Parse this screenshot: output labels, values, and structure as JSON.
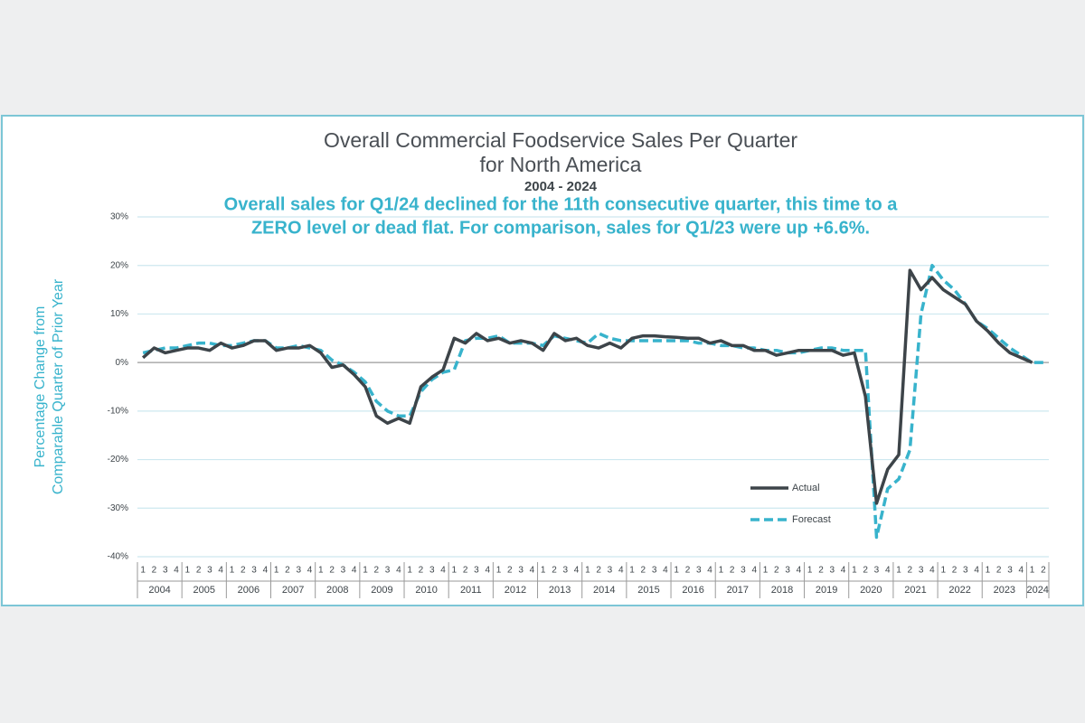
{
  "chart_data": {
    "type": "line",
    "title": [
      "Overall Commercial Foodservice Sales Per Quarter",
      "for North America"
    ],
    "subtitle": "2004 - 2024",
    "annotation": [
      "Overall sales for Q1/24 declined for the 11th consecutive quarter, this time to a",
      "ZERO level or dead flat. For comparison,  sales for Q1/23 were up +6.6%."
    ],
    "y_label": [
      "Percentage Change from",
      "Comparable Quarter of Prior Year"
    ],
    "categories": [
      "1",
      "2",
      "3",
      "4",
      "1",
      "2",
      "3",
      "4",
      "1",
      "2",
      "3",
      "4",
      "1",
      "2",
      "3",
      "4",
      "1",
      "2",
      "3",
      "4",
      "1",
      "2",
      "3",
      "4",
      "1",
      "2",
      "3",
      "4",
      "1",
      "2",
      "3",
      "4",
      "1",
      "2",
      "3",
      "4",
      "1",
      "2",
      "3",
      "4",
      "1",
      "2",
      "3",
      "4",
      "1",
      "2",
      "3",
      "4",
      "1",
      "2",
      "3",
      "4",
      "1",
      "2",
      "3",
      "4",
      "1",
      "2",
      "3",
      "4",
      "1",
      "2",
      "3",
      "4",
      "1",
      "2",
      "3",
      "4",
      "1",
      "2",
      "3",
      "4",
      "1",
      "2",
      "3",
      "4",
      "1",
      "2",
      "3",
      "4",
      "1",
      "2"
    ],
    "years": [
      "2004",
      "2005",
      "2006",
      "2007",
      "2008",
      "2009",
      "2010",
      "2011",
      "2012",
      "2013",
      "2014",
      "2015",
      "2016",
      "2017",
      "2018",
      "2019",
      "2020",
      "2021",
      "2022",
      "2023",
      "2024"
    ],
    "series": [
      {
        "name": "Actual",
        "color": "#3d4449",
        "values": [
          1,
          3,
          2,
          2.5,
          3,
          3,
          2.5,
          4,
          3,
          3.5,
          4.5,
          4.5,
          2.5,
          3,
          3,
          3.5,
          2,
          -1,
          -0.5,
          -2.5,
          -5,
          -11,
          -12.5,
          -11.5,
          -12.5,
          -5,
          -3,
          -1.5,
          5,
          4,
          6,
          4.5,
          5,
          4,
          4.5,
          4,
          2.5,
          6,
          4.5,
          5,
          3.5,
          3,
          4,
          3,
          5,
          5.5,
          5.5,
          5.3,
          5.2,
          5,
          5,
          4,
          4.5,
          3.5,
          3.5,
          2.5,
          2.5,
          1.5,
          2,
          2.5,
          2.5,
          2.5,
          2.5,
          1.5,
          2,
          -7,
          -29,
          -22,
          -19,
          19,
          15,
          17.5,
          15,
          13.5,
          12,
          8.5,
          6.5,
          4,
          2,
          1,
          0,
          null
        ]
      },
      {
        "name": "Forecast",
        "color": "#38b3cc",
        "dashed": true,
        "values": [
          2,
          2.5,
          3,
          3,
          3.5,
          4,
          4,
          3.5,
          3.5,
          4,
          4.5,
          4.5,
          3,
          3,
          3.5,
          3,
          2.5,
          0.5,
          -0.5,
          -2,
          -4,
          -8,
          -10,
          -11,
          -11,
          -6,
          -3.5,
          -2,
          -1.5,
          4.5,
          5,
          5,
          5.5,
          4,
          4,
          4,
          3.5,
          5.5,
          5,
          4.5,
          4,
          6,
          5,
          4.5,
          4.5,
          4.5,
          4.5,
          4.5,
          4.5,
          4.5,
          4,
          4,
          3.5,
          3.5,
          3,
          3,
          2.5,
          2.5,
          2,
          2,
          2.5,
          3,
          3,
          2.5,
          2.5,
          2.5,
          -36,
          -26,
          -24,
          -18,
          10,
          20,
          17,
          15,
          12,
          8.5,
          7,
          5,
          3,
          1.5,
          0,
          0
        ]
      }
    ],
    "ylim": [
      -40,
      30
    ],
    "yticks": [
      {
        "value": -40,
        "label": "-40%"
      },
      {
        "value": -30,
        "label": "-30%"
      },
      {
        "value": -20,
        "label": "-20%"
      },
      {
        "value": -10,
        "label": "-10%"
      },
      {
        "value": 0,
        "label": "0%"
      },
      {
        "value": 10,
        "label": "10%"
      },
      {
        "value": 20,
        "label": "20%"
      },
      {
        "value": 30,
        "label": "30%"
      }
    ],
    "grid": true
  }
}
